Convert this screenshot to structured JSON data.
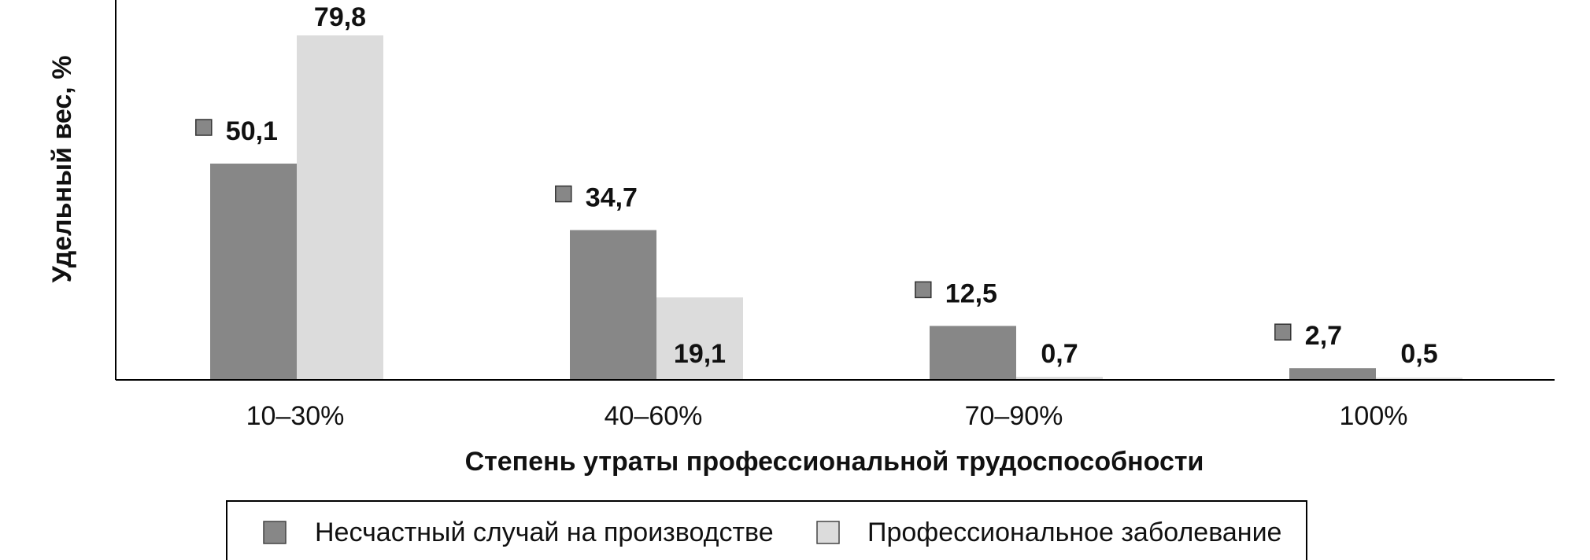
{
  "chart_data": {
    "type": "bar",
    "categories": [
      "10–30%",
      "40–60%",
      "70–90%",
      "100%"
    ],
    "series": [
      {
        "name": "Несчастный случай на производстве",
        "values": [
          50.1,
          34.7,
          12.5,
          2.7
        ],
        "color": "#878787",
        "labels": [
          "50,1",
          "34,7",
          "12,5",
          "2,7"
        ]
      },
      {
        "name": "Профессиональное заболевание",
        "values": [
          79.8,
          19.1,
          0.7,
          0.5
        ],
        "color": "#dcdcdc",
        "labels": [
          "79,8",
          "19,1",
          "0,7",
          "0,5"
        ]
      }
    ],
    "xlabel": "Степень утраты профессиональной трудоспособности",
    "ylabel": "Удельный вес, %",
    "ylim": [
      0,
      82
    ],
    "grid": false,
    "legend_position": "bottom",
    "marker_color": "#878787"
  }
}
